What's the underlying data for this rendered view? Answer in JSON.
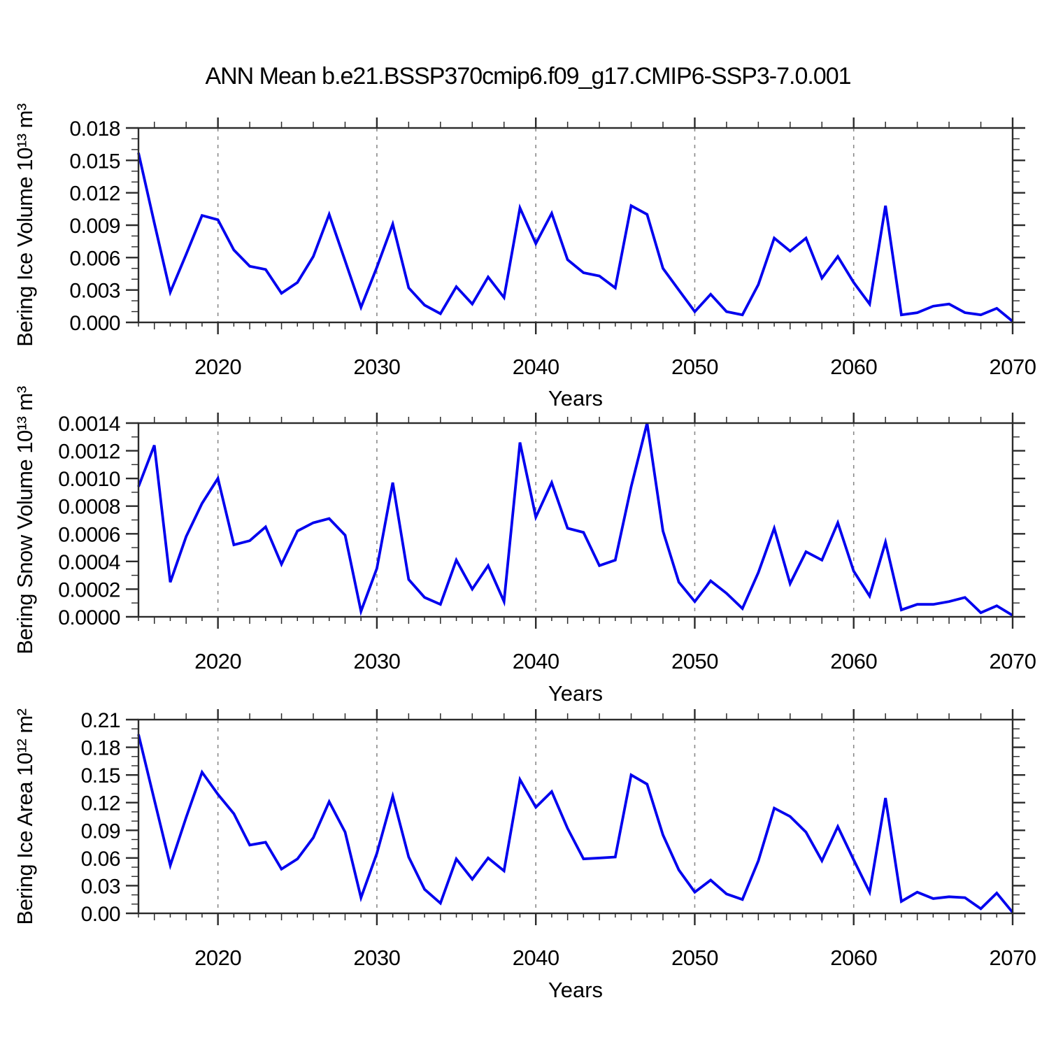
{
  "title": "ANN Mean b.e21.BSSP370cmip6.f09_g17.CMIP6-SSP3-7.0.001",
  "colors": {
    "line": "#0000EE",
    "grid": "#8a8a8a",
    "axis": "#2b2b2b",
    "text": "#000000",
    "background": "#ffffff"
  },
  "chart_data": [
    {
      "type": "line",
      "name": "bering-ice-volume",
      "ylabel": "Bering Ice Volume 10¹³ m³",
      "xlabel": "Years",
      "x_range": [
        2015,
        2070
      ],
      "ylim": [
        0.0,
        0.018
      ],
      "yticks": [
        0.0,
        0.003,
        0.006,
        0.009,
        0.012,
        0.015,
        0.018
      ],
      "ytick_labels": [
        "0.000",
        "0.003",
        "0.006",
        "0.009",
        "0.012",
        "0.015",
        "0.018"
      ],
      "ytick_minor_step": 0.001,
      "xticks": [
        2020,
        2030,
        2040,
        2050,
        2060,
        2070
      ],
      "xtick_labels": [
        "2020",
        "2030",
        "2040",
        "2050",
        "2060",
        "2070"
      ],
      "gridlines_x": [
        2020,
        2030,
        2040,
        2050,
        2060
      ],
      "grid_style": "dashed-vertical",
      "legend": "none",
      "x": [
        2015,
        2016,
        2017,
        2018,
        2019,
        2020,
        2021,
        2022,
        2023,
        2024,
        2025,
        2026,
        2027,
        2028,
        2029,
        2030,
        2031,
        2032,
        2033,
        2034,
        2035,
        2036,
        2037,
        2038,
        2039,
        2040,
        2041,
        2042,
        2043,
        2044,
        2045,
        2046,
        2047,
        2048,
        2049,
        2050,
        2051,
        2052,
        2053,
        2054,
        2055,
        2056,
        2057,
        2058,
        2059,
        2060,
        2061,
        2062,
        2063,
        2064,
        2065,
        2066,
        2067,
        2068,
        2069,
        2070
      ],
      "values": [
        0.0157,
        0.0092,
        0.0028,
        0.0063,
        0.0099,
        0.0095,
        0.0067,
        0.0052,
        0.0049,
        0.0027,
        0.0037,
        0.0061,
        0.01,
        0.0057,
        0.0014,
        0.0051,
        0.0091,
        0.0032,
        0.0016,
        0.0008,
        0.0033,
        0.0017,
        0.0042,
        0.0023,
        0.0106,
        0.0073,
        0.0101,
        0.0058,
        0.0046,
        0.0043,
        0.0032,
        0.0108,
        0.01,
        0.005,
        0.003,
        0.001,
        0.0026,
        0.001,
        0.0007,
        0.0035,
        0.0078,
        0.0066,
        0.0078,
        0.0041,
        0.0061,
        0.0037,
        0.0017,
        0.0108,
        0.0007,
        0.0009,
        0.0015,
        0.0017,
        0.0009,
        0.0007,
        0.0013,
        0.0001
      ]
    },
    {
      "type": "line",
      "name": "bering-snow-volume",
      "ylabel": "Bering Snow Volume 10¹³ m³",
      "xlabel": "Years",
      "x_range": [
        2015,
        2070
      ],
      "ylim": [
        0.0,
        0.0014
      ],
      "yticks": [
        0.0,
        0.0002,
        0.0004,
        0.0006,
        0.0008,
        0.001,
        0.0012,
        0.0014
      ],
      "ytick_labels": [
        "0.0000",
        "0.0002",
        "0.0004",
        "0.0006",
        "0.0008",
        "0.0010",
        "0.0012",
        "0.0014"
      ],
      "ytick_minor_step": 0.0001,
      "xticks": [
        2020,
        2030,
        2040,
        2050,
        2060,
        2070
      ],
      "xtick_labels": [
        "2020",
        "2030",
        "2040",
        "2050",
        "2060",
        "2070"
      ],
      "gridlines_x": [
        2020,
        2030,
        2040,
        2050,
        2060
      ],
      "grid_style": "dashed-vertical",
      "legend": "none",
      "x": [
        2015,
        2016,
        2017,
        2018,
        2019,
        2020,
        2021,
        2022,
        2023,
        2024,
        2025,
        2026,
        2027,
        2028,
        2029,
        2030,
        2031,
        2032,
        2033,
        2034,
        2035,
        2036,
        2037,
        2038,
        2039,
        2040,
        2041,
        2042,
        2043,
        2044,
        2045,
        2046,
        2047,
        2048,
        2049,
        2050,
        2051,
        2052,
        2053,
        2054,
        2055,
        2056,
        2057,
        2058,
        2059,
        2060,
        2061,
        2062,
        2063,
        2064,
        2065,
        2066,
        2067,
        2068,
        2069,
        2070
      ],
      "values": [
        0.00094,
        0.00124,
        0.00025,
        0.00058,
        0.00082,
        0.001,
        0.00052,
        0.00055,
        0.00065,
        0.00038,
        0.00062,
        0.00068,
        0.00071,
        0.00059,
        4e-05,
        0.00035,
        0.00097,
        0.00027,
        0.00014,
        9e-05,
        0.00041,
        0.0002,
        0.00037,
        0.00011,
        0.00126,
        0.00072,
        0.00097,
        0.00064,
        0.00061,
        0.00037,
        0.00041,
        0.00094,
        0.0014,
        0.00062,
        0.00025,
        0.00011,
        0.00026,
        0.00017,
        6e-05,
        0.00032,
        0.00064,
        0.00024,
        0.00047,
        0.00041,
        0.00068,
        0.00033,
        0.00015,
        0.00054,
        5e-05,
        9e-05,
        9e-05,
        0.00011,
        0.00014,
        3e-05,
        8e-05,
        1e-05
      ]
    },
    {
      "type": "line",
      "name": "bering-ice-area",
      "ylabel": "Bering Ice Area 10¹² m²",
      "xlabel": "Years",
      "x_range": [
        2015,
        2070
      ],
      "ylim": [
        0.0,
        0.21
      ],
      "yticks": [
        0.0,
        0.03,
        0.06,
        0.09,
        0.12,
        0.15,
        0.18,
        0.21
      ],
      "ytick_labels": [
        "0.00",
        "0.03",
        "0.06",
        "0.09",
        "0.12",
        "0.15",
        "0.18",
        "0.21"
      ],
      "ytick_minor_step": 0.01,
      "xticks": [
        2020,
        2030,
        2040,
        2050,
        2060,
        2070
      ],
      "xtick_labels": [
        "2020",
        "2030",
        "2040",
        "2050",
        "2060",
        "2070"
      ],
      "gridlines_x": [
        2020,
        2030,
        2040,
        2050,
        2060
      ],
      "grid_style": "dashed-vertical",
      "legend": "none",
      "x": [
        2015,
        2016,
        2017,
        2018,
        2019,
        2020,
        2021,
        2022,
        2023,
        2024,
        2025,
        2026,
        2027,
        2028,
        2029,
        2030,
        2031,
        2032,
        2033,
        2034,
        2035,
        2036,
        2037,
        2038,
        2039,
        2040,
        2041,
        2042,
        2043,
        2044,
        2045,
        2046,
        2047,
        2048,
        2049,
        2050,
        2051,
        2052,
        2053,
        2054,
        2055,
        2056,
        2057,
        2058,
        2059,
        2060,
        2061,
        2062,
        2063,
        2064,
        2065,
        2066,
        2067,
        2068,
        2069,
        2070
      ],
      "values": [
        0.194,
        0.123,
        0.052,
        0.104,
        0.153,
        0.129,
        0.108,
        0.074,
        0.077,
        0.048,
        0.059,
        0.082,
        0.121,
        0.088,
        0.017,
        0.065,
        0.127,
        0.061,
        0.026,
        0.011,
        0.059,
        0.037,
        0.06,
        0.046,
        0.145,
        0.115,
        0.132,
        0.092,
        0.059,
        0.06,
        0.061,
        0.15,
        0.14,
        0.085,
        0.047,
        0.023,
        0.036,
        0.021,
        0.015,
        0.057,
        0.114,
        0.105,
        0.088,
        0.057,
        0.094,
        0.058,
        0.023,
        0.125,
        0.013,
        0.023,
        0.016,
        0.018,
        0.017,
        0.005,
        0.022,
        0.001
      ]
    }
  ]
}
